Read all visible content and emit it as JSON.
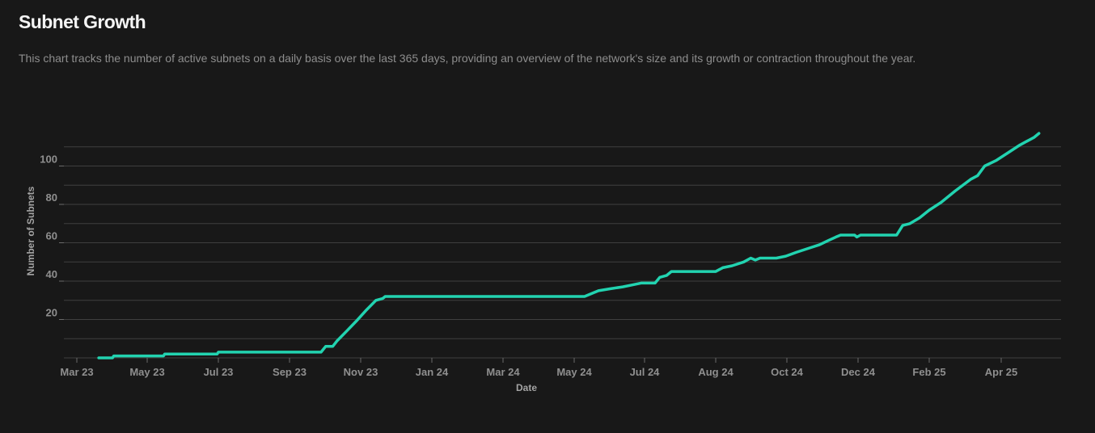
{
  "header": {
    "title": "Subnet Growth",
    "description": "This chart tracks the number of active subnets on a daily basis over the last 365 days, providing an overview of the network's size and its growth or contraction throughout the year."
  },
  "colors": {
    "background": "#181818",
    "line": "#22d3b0",
    "grid": "#3f3f3f"
  },
  "chart_data": {
    "type": "line",
    "xlabel": "Date",
    "ylabel": "Number of Subnets",
    "x_ticks": [
      "Mar 23",
      "May 23",
      "Jul 23",
      "Sep 23",
      "Nov 23",
      "Jan 24",
      "Mar 24",
      "May 24",
      "Jul 24",
      "Aug 24",
      "Oct 24",
      "Dec 24",
      "Feb 25",
      "Apr 25"
    ],
    "y_ticks": [
      20,
      40,
      60,
      80,
      100
    ],
    "ylim": [
      0,
      120
    ],
    "grid": true,
    "series": [
      {
        "points": [
          [
            "2023-03-20",
            0
          ],
          [
            "2023-04-01",
            0
          ],
          [
            "2023-04-02",
            1
          ],
          [
            "2023-05-15",
            1
          ],
          [
            "2023-05-16",
            2
          ],
          [
            "2023-06-30",
            2
          ],
          [
            "2023-07-01",
            3
          ],
          [
            "2023-09-28",
            3
          ],
          [
            "2023-10-02",
            6
          ],
          [
            "2023-10-08",
            6
          ],
          [
            "2023-10-12",
            9
          ],
          [
            "2023-10-20",
            14
          ],
          [
            "2023-10-28",
            19
          ],
          [
            "2023-11-06",
            25
          ],
          [
            "2023-11-14",
            30
          ],
          [
            "2023-11-20",
            31
          ],
          [
            "2023-11-22",
            32
          ],
          [
            "2024-05-10",
            32
          ],
          [
            "2024-05-14",
            33
          ],
          [
            "2024-05-22",
            35
          ],
          [
            "2024-06-01",
            36
          ],
          [
            "2024-06-12",
            37
          ],
          [
            "2024-06-20",
            38
          ],
          [
            "2024-06-28",
            39
          ],
          [
            "2024-07-10",
            39
          ],
          [
            "2024-07-14",
            42
          ],
          [
            "2024-07-20",
            43
          ],
          [
            "2024-07-24",
            45
          ],
          [
            "2024-08-31",
            45
          ],
          [
            "2024-09-06",
            47
          ],
          [
            "2024-09-14",
            48
          ],
          [
            "2024-09-24",
            50
          ],
          [
            "2024-09-30",
            52
          ],
          [
            "2024-10-04",
            51
          ],
          [
            "2024-10-08",
            52
          ],
          [
            "2024-10-22",
            52
          ],
          [
            "2024-10-30",
            53
          ],
          [
            "2024-11-08",
            55
          ],
          [
            "2024-11-18",
            57
          ],
          [
            "2024-11-28",
            59
          ],
          [
            "2024-12-05",
            61
          ],
          [
            "2024-12-12",
            63
          ],
          [
            "2024-12-16",
            64
          ],
          [
            "2024-12-28",
            64
          ],
          [
            "2024-12-30",
            63
          ],
          [
            "2025-01-02",
            64
          ],
          [
            "2025-02-01",
            64
          ],
          [
            "2025-02-06",
            69
          ],
          [
            "2025-02-12",
            70
          ],
          [
            "2025-02-20",
            73
          ],
          [
            "2025-02-28",
            77
          ],
          [
            "2025-03-10",
            81
          ],
          [
            "2025-03-22",
            87
          ],
          [
            "2025-04-04",
            93
          ],
          [
            "2025-04-10",
            95
          ],
          [
            "2025-04-16",
            100
          ],
          [
            "2025-04-26",
            103
          ],
          [
            "2025-05-06",
            107
          ],
          [
            "2025-05-16",
            111
          ],
          [
            "2025-05-28",
            115
          ],
          [
            "2025-06-01",
            117
          ]
        ]
      }
    ]
  }
}
